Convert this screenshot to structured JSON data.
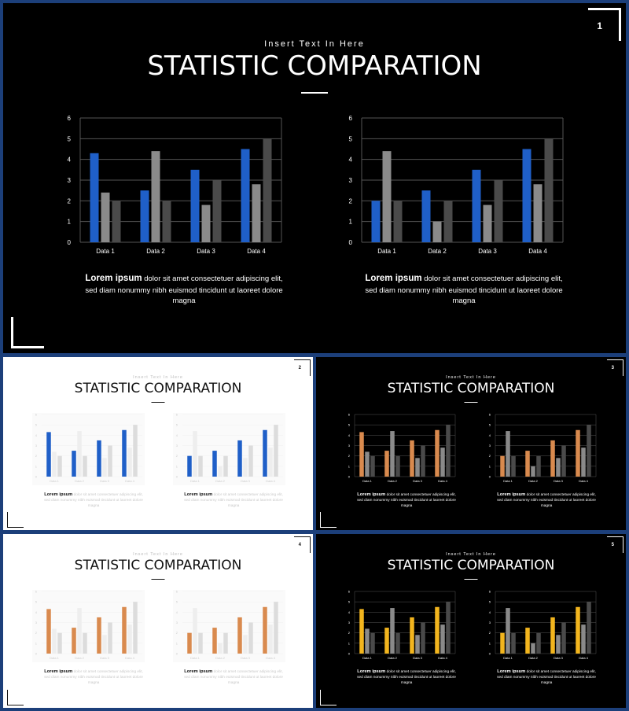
{
  "slides": [
    {
      "number": "1",
      "theme": "dark",
      "accent": "#1f5fc8",
      "subtitle": "Insert Text In Here",
      "title": "STATISTIC COMPARATION",
      "paragraph_bold": "Lorem ipsum",
      "paragraph_rest": " dolor sit amet consectetuer adipiscing elit, sed diam nonummy nibh euismod tincidunt ut laoreet dolore magna"
    },
    {
      "number": "2",
      "theme": "light",
      "accent": "#1f5fc8",
      "subtitle": "Insert Text In Here",
      "title": "STATISTIC COMPARATION",
      "paragraph_bold": "Lorem ipsum",
      "paragraph_rest": " dolor sit amet consectetuer adipiscing elit, sed diam nonummy nibh euismod tincidunt ut laoreet dolore magna"
    },
    {
      "number": "3",
      "theme": "dark",
      "accent": "#d98a4e",
      "subtitle": "Insert Text In Here",
      "title": "STATISTIC COMPARATION",
      "paragraph_bold": "Lorem ipsum",
      "paragraph_rest": " dolor sit amet consectetuer adipiscing elit, sed diam nonummy nibh euismod tincidunt ut laoreet dolore magna"
    },
    {
      "number": "4",
      "theme": "light",
      "accent": "#d98a4e",
      "subtitle": "Insert Text In Here",
      "title": "STATISTIC COMPARATION",
      "paragraph_bold": "Lorem ipsum",
      "paragraph_rest": " dolor sit amet consectetuer adipiscing elit, sed diam nonummy nibh euismod tincidunt ut laoreet dolore magna"
    },
    {
      "number": "5",
      "theme": "dark",
      "accent": "#f2b51e",
      "subtitle": "Insert Text In Here",
      "title": "STATISTIC COMPARATION",
      "paragraph_bold": "Lorem ipsum",
      "paragraph_rest": " dolor sit amet consectetuer adipiscing elit, sed diam nonummy nibh euismod tincidunt ut laoreet dolore magna"
    }
  ],
  "colors": {
    "dark_series2": "#8a8a8a",
    "dark_series3": "#4a4a4a",
    "light_series2": "#eeeeee",
    "light_series3": "#dcdcdc"
  },
  "chart_data": [
    {
      "type": "bar",
      "categories": [
        "Data 1",
        "Data 2",
        "Data 3",
        "Data 4"
      ],
      "ylim": [
        0,
        6
      ],
      "yticks": [
        "0",
        "1",
        "2",
        "3",
        "4",
        "5",
        "6"
      ],
      "series": [
        {
          "values": [
            4.3,
            2.5,
            3.5,
            4.5
          ]
        },
        {
          "values": [
            2.4,
            4.4,
            1.8,
            2.8
          ]
        },
        {
          "values": [
            2,
            2,
            3,
            5
          ]
        }
      ]
    },
    {
      "type": "bar",
      "categories": [
        "Data 1",
        "Data 2",
        "Data 3",
        "Data 4"
      ],
      "ylim": [
        0,
        6
      ],
      "yticks": [
        "0",
        "1",
        "2",
        "3",
        "4",
        "5",
        "6"
      ],
      "series": [
        {
          "values": [
            2,
            2.5,
            3.5,
            4.5
          ]
        },
        {
          "values": [
            4.4,
            1,
            1.8,
            2.8
          ]
        },
        {
          "values": [
            2,
            2,
            3,
            5
          ]
        }
      ]
    }
  ]
}
